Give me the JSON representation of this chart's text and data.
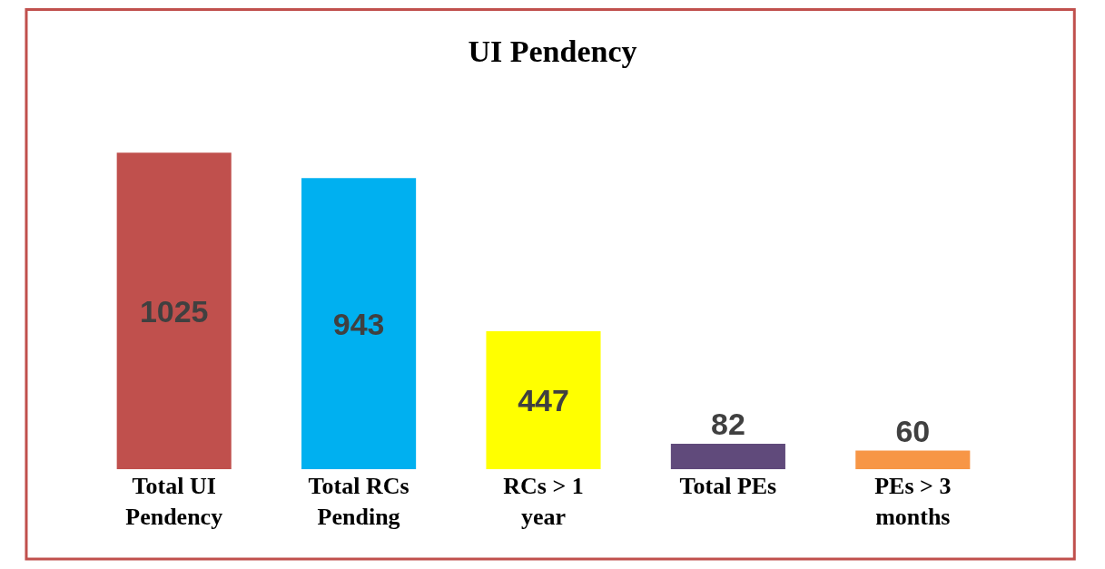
{
  "chart_data": {
    "type": "bar",
    "title": "UI Pendency",
    "categories": [
      "Total UI Pendency",
      "Total RCs Pending",
      "RCs > 1 year",
      "Total PEs",
      "PEs > 3 months"
    ],
    "values": [
      1025,
      943,
      447,
      82,
      60
    ],
    "colors": [
      "#c0504d",
      "#00b0f0",
      "#ffff00",
      "#604a7b",
      "#f79646"
    ],
    "data_labels": true
  }
}
